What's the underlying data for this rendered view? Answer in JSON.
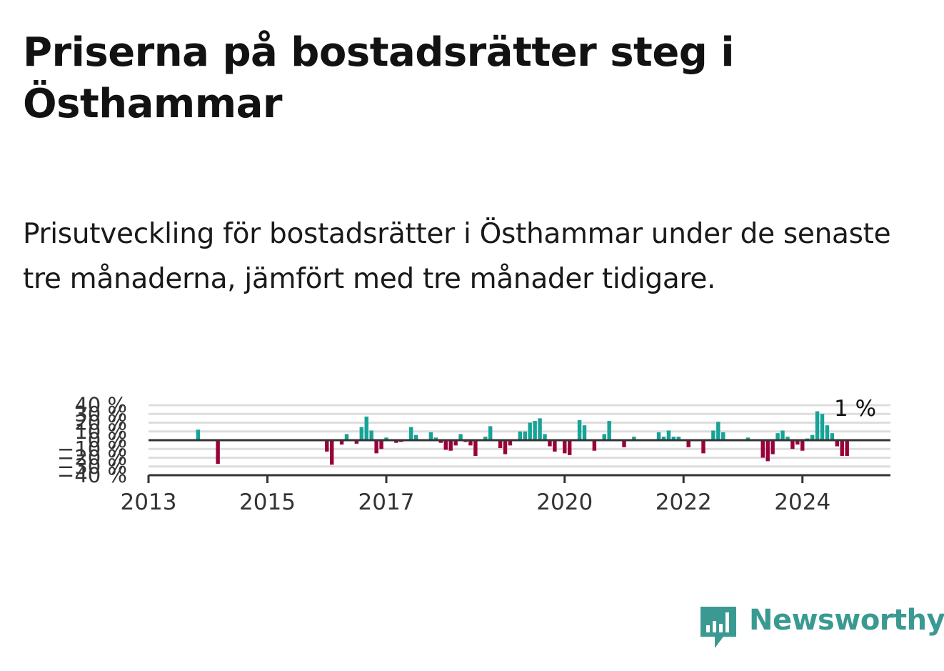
{
  "title": "Priserna på bostadsrätter steg i Östhammar",
  "subtitle": "Prisutveckling för bostadsrätter i Östhammar under de senaste tre månaderna, jämfört med tre månader tidigare.",
  "brand": {
    "name": "Newsworthy",
    "color": "#3a9a92",
    "icon": "newsworthy-logo-icon"
  },
  "colors": {
    "positive": "#17a398",
    "negative": "#99003a",
    "zero_line": "#333333",
    "grid": "#dddddd"
  },
  "chart_data": {
    "type": "bar",
    "title": "",
    "xlabel": "",
    "ylabel": "",
    "ylim": [
      -40,
      40
    ],
    "y_ticks": [
      40,
      30,
      20,
      10,
      0,
      -10,
      -20,
      -30,
      -40
    ],
    "y_tick_labels": [
      "40 %",
      "30 %",
      "20 %",
      "10 %",
      "0 %",
      "−10 %",
      "−20 %",
      "−30 %",
      "−40 %"
    ],
    "x_range": [
      "2013-01",
      "2025-06"
    ],
    "x_ticks": [
      "2013",
      "2015",
      "2017",
      "2020",
      "2022",
      "2024"
    ],
    "grid": true,
    "last_value_label": "1 %",
    "series": [
      {
        "values": [
          {
            "date": "2013-11",
            "value": 12
          },
          {
            "date": "2014-03",
            "value": -27
          },
          {
            "date": "2016-01",
            "value": -13
          },
          {
            "date": "2016-02",
            "value": -28
          },
          {
            "date": "2016-04",
            "value": -5
          },
          {
            "date": "2016-05",
            "value": 7
          },
          {
            "date": "2016-07",
            "value": -4
          },
          {
            "date": "2016-08",
            "value": 15
          },
          {
            "date": "2016-09",
            "value": 27
          },
          {
            "date": "2016-10",
            "value": 11
          },
          {
            "date": "2016-11",
            "value": -15
          },
          {
            "date": "2016-12",
            "value": -10
          },
          {
            "date": "2017-01",
            "value": 3
          },
          {
            "date": "2017-03",
            "value": -3
          },
          {
            "date": "2017-04",
            "value": -2
          },
          {
            "date": "2017-06",
            "value": 15
          },
          {
            "date": "2017-07",
            "value": 6
          },
          {
            "date": "2017-10",
            "value": 9
          },
          {
            "date": "2017-11",
            "value": 3
          },
          {
            "date": "2017-12",
            "value": -3
          },
          {
            "date": "2018-01",
            "value": -11
          },
          {
            "date": "2018-02",
            "value": -12
          },
          {
            "date": "2018-03",
            "value": -6
          },
          {
            "date": "2018-04",
            "value": 7
          },
          {
            "date": "2018-05",
            "value": -2
          },
          {
            "date": "2018-06",
            "value": -6
          },
          {
            "date": "2018-07",
            "value": -18
          },
          {
            "date": "2018-09",
            "value": 4
          },
          {
            "date": "2018-10",
            "value": 16
          },
          {
            "date": "2018-12",
            "value": -9
          },
          {
            "date": "2019-01",
            "value": -16
          },
          {
            "date": "2019-02",
            "value": -6
          },
          {
            "date": "2019-04",
            "value": 10
          },
          {
            "date": "2019-05",
            "value": 10
          },
          {
            "date": "2019-06",
            "value": 20
          },
          {
            "date": "2019-07",
            "value": 22
          },
          {
            "date": "2019-08",
            "value": 25
          },
          {
            "date": "2019-09",
            "value": 7
          },
          {
            "date": "2019-10",
            "value": -7
          },
          {
            "date": "2019-11",
            "value": -13
          },
          {
            "date": "2020-01",
            "value": -15
          },
          {
            "date": "2020-02",
            "value": -17
          },
          {
            "date": "2020-04",
            "value": 23
          },
          {
            "date": "2020-05",
            "value": 17
          },
          {
            "date": "2020-07",
            "value": -12
          },
          {
            "date": "2020-09",
            "value": 7
          },
          {
            "date": "2020-10",
            "value": 22
          },
          {
            "date": "2021-01",
            "value": -8
          },
          {
            "date": "2021-03",
            "value": 4
          },
          {
            "date": "2021-08",
            "value": 9
          },
          {
            "date": "2021-09",
            "value": 4
          },
          {
            "date": "2021-10",
            "value": 11
          },
          {
            "date": "2021-11",
            "value": 4
          },
          {
            "date": "2021-12",
            "value": 4
          },
          {
            "date": "2022-02",
            "value": -8
          },
          {
            "date": "2022-05",
            "value": -15
          },
          {
            "date": "2022-07",
            "value": 11
          },
          {
            "date": "2022-08",
            "value": 21
          },
          {
            "date": "2022-09",
            "value": 9
          },
          {
            "date": "2023-02",
            "value": 3
          },
          {
            "date": "2023-05",
            "value": -20
          },
          {
            "date": "2023-06",
            "value": -24
          },
          {
            "date": "2023-07",
            "value": -16
          },
          {
            "date": "2023-08",
            "value": 8
          },
          {
            "date": "2023-09",
            "value": 11
          },
          {
            "date": "2023-10",
            "value": 4
          },
          {
            "date": "2023-11",
            "value": -10
          },
          {
            "date": "2023-12",
            "value": -5
          },
          {
            "date": "2024-01",
            "value": -12
          },
          {
            "date": "2024-02",
            "value": 2
          },
          {
            "date": "2024-03",
            "value": 6
          },
          {
            "date": "2024-04",
            "value": 33
          },
          {
            "date": "2024-05",
            "value": 30
          },
          {
            "date": "2024-06",
            "value": 17
          },
          {
            "date": "2024-07",
            "value": 8
          },
          {
            "date": "2024-08",
            "value": -7
          },
          {
            "date": "2024-09",
            "value": -18
          },
          {
            "date": "2024-10",
            "value": -18
          }
        ]
      }
    ]
  }
}
